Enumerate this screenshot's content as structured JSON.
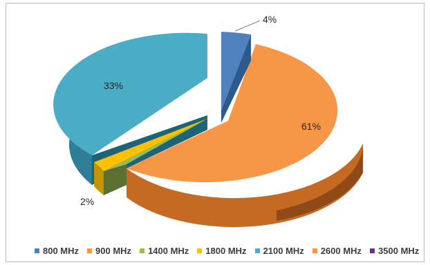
{
  "chart_data": {
    "type": "pie",
    "style": "3d-exploded",
    "title": "",
    "categories": [
      "800 MHz",
      "900 MHz",
      "1400 MHz",
      "1800 MHz",
      "2100 MHz",
      "2600 MHz",
      "3500 MHz"
    ],
    "values": [
      4,
      61,
      0,
      2,
      33,
      0,
      0
    ],
    "data_labels": [
      "4%",
      "61%",
      "",
      "2%",
      "33%",
      "",
      ""
    ],
    "legend_position": "bottom",
    "colors": {
      "800 MHz": "#4f81bd",
      "900 MHz": "#f79646",
      "1400 MHz": "#9bbb59",
      "1800 MHz": "#ffc000",
      "2100 MHz": "#4bacc6",
      "2600 MHz": "#f79646",
      "3500 MHz": "#7030a0"
    }
  }
}
